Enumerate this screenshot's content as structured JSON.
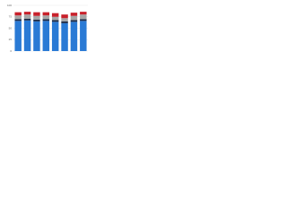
{
  "chart_data": {
    "type": "stacked-bar",
    "categories": [
      null,
      null,
      null,
      null,
      null,
      null,
      null,
      null
    ],
    "series": [
      {
        "color": "#2a7ad5",
        "values": [
          66,
          67,
          65,
          66,
          64,
          61,
          64,
          66
        ]
      },
      {
        "color": "#1b2a48",
        "values": [
          4,
          4,
          4,
          4,
          4,
          4,
          4,
          4
        ]
      },
      {
        "color": "#a5a5a5",
        "values": [
          8,
          9,
          8,
          8,
          7,
          7,
          9,
          10
        ]
      },
      {
        "color": "#c8202a",
        "values": [
          7,
          6,
          8,
          7,
          8,
          8,
          7,
          6
        ]
      }
    ],
    "ylim": [
      0,
      100
    ],
    "yticks": [
      0,
      25,
      50,
      75,
      100
    ],
    "grid": true
  }
}
